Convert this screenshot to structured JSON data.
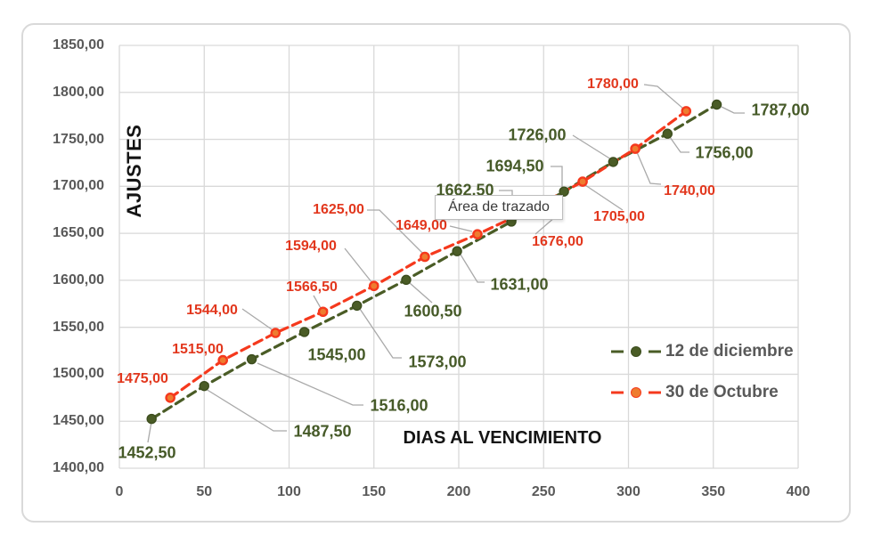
{
  "chart_data": {
    "type": "line",
    "title": "",
    "xlabel": "DIAS AL VENCIMIENTO",
    "ylabel": "AJUSTES",
    "xlim": [
      0,
      400
    ],
    "ylim": [
      1400,
      1850
    ],
    "x_ticks": [
      "0",
      "50",
      "100",
      "150",
      "200",
      "250",
      "300",
      "350",
      "400"
    ],
    "y_ticks": [
      "1850,00",
      "1800,00",
      "1750,00",
      "1700,00",
      "1650,00",
      "1600,00",
      "1550,00",
      "1500,00",
      "1450,00",
      "1400,00"
    ],
    "grid": true,
    "legend_position": "middle-right",
    "plot_area_tooltip": "Área de trazado",
    "colors": {
      "gridline": "#d9d9d9",
      "tick_text": "#595959",
      "axis_title_text": "#141414",
      "legend_text": "#595959",
      "leader_line": "#a9a9a9",
      "tooltip_border": "#bdbdbd"
    },
    "series": [
      {
        "name": "12 de diciembre",
        "line_color": "#4a5c26",
        "marker_fill": "#4a5c26",
        "marker_stroke": "#3c4d1e",
        "label_color": "#465a28",
        "x": [
          19,
          50,
          78,
          109,
          140,
          169,
          199,
          231,
          262,
          291,
          323,
          352
        ],
        "y": [
          1452.5,
          1487.5,
          1516,
          1545,
          1573,
          1600.5,
          1631,
          1662.5,
          1694.5,
          1726,
          1756,
          1787
        ],
        "labels": [
          "1452,50",
          "1487,50",
          "1516,00",
          "1545,00",
          "1573,00",
          "1600,50",
          "1631,00",
          "1662,50",
          "1694,50",
          "1726,00",
          "1756,00",
          "1787,00"
        ]
      },
      {
        "name": "30 de Octubre",
        "line_color": "#f5391d",
        "marker_fill": "#ee7c2f",
        "marker_stroke": "#f5391d",
        "label_color": "#e2371d",
        "x": [
          30,
          61,
          92,
          120,
          150,
          180,
          211,
          243,
          273,
          304,
          334
        ],
        "y": [
          1475,
          1515,
          1544,
          1566.5,
          1594,
          1625,
          1649,
          1676,
          1705,
          1740,
          1780
        ],
        "labels": [
          "1475,00",
          "1515,00",
          "1544,00",
          "1566,50",
          "1594,00",
          "1625,00",
          "1649,00",
          "1676,00",
          "1705,00",
          "1740,00",
          "1780,00"
        ]
      }
    ]
  }
}
